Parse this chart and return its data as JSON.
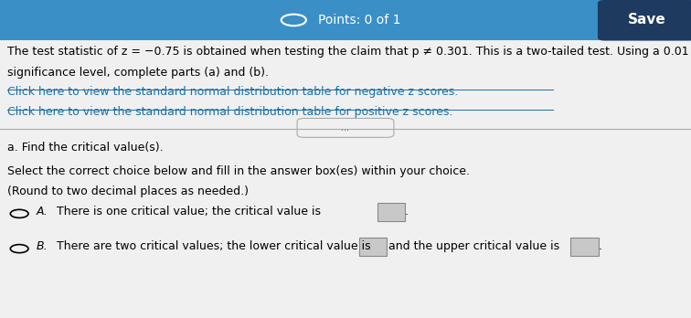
{
  "header_bg": "#3a8fc7",
  "header_text": "Points: 0 of 1",
  "save_button_text": "Save",
  "save_button_bg": "#1E3A5F",
  "body_bg": "#f0f0f0",
  "main_text_line1": "The test statistic of z = −0.75 is obtained when testing the claim that p ≠ 0.301. This is a two-tailed test. Using a 0.01",
  "main_text_line2": "significance level, complete parts (a) and (b).",
  "link1": "Click here to view the standard normal distribution table for negative z scores.",
  "link2": "Click here to view the standard normal distribution table for positive z scores.",
  "divider_label": "...",
  "section_a": "a. Find the critical value(s).",
  "instruction_line1": "Select the correct choice below and fill in the answer box(es) within your choice.",
  "instruction_line2": "(Round to two decimal places as needed.)",
  "choice_a_label": "A.",
  "choice_a_text": "There is one critical value; the critical value is",
  "choice_b_label": "B.",
  "choice_b_text": "There are two critical values; the lower critical value is",
  "choice_b2_text": "and the upper critical value is",
  "link_color": "#1a6fa8",
  "text_color": "#000000",
  "font_size_main": 9,
  "font_size_header": 10
}
